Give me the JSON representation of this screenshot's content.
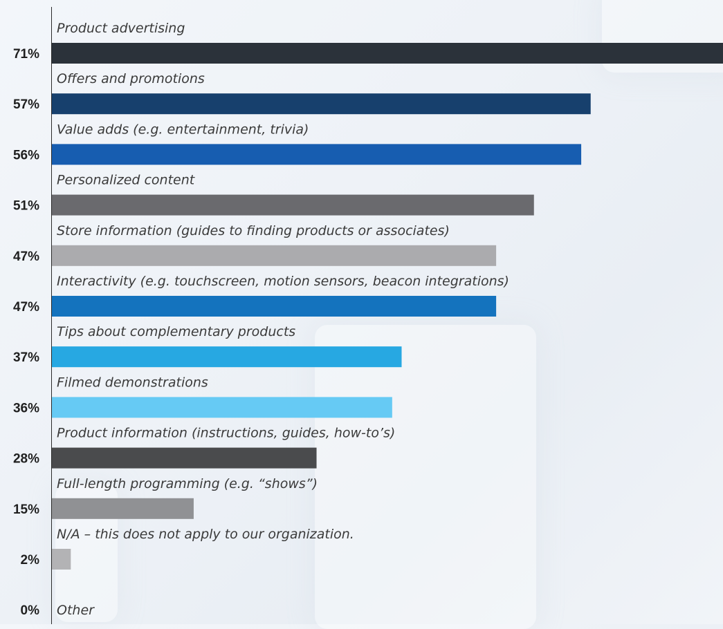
{
  "chart_data": {
    "type": "bar",
    "orientation": "horizontal",
    "categories": [
      "Product advertising",
      "Offers and promotions",
      "Value adds (e.g. entertainment, trivia)",
      "Personalized content",
      "Store information (guides to finding products or associates)",
      "Interactivity (e.g. touchscreen, motion sensors, beacon integrations)",
      "Tips about complementary products",
      "Filmed demonstrations",
      "Product information (instructions, guides, how-to’s)",
      "Full-length programming (e.g. “shows”)",
      "N/A – this does not apply to our organization.",
      "Other"
    ],
    "values": [
      71,
      57,
      56,
      51,
      47,
      47,
      37,
      36,
      28,
      15,
      2,
      0
    ],
    "value_labels": [
      "71%",
      "57%",
      "56%",
      "51%",
      "47%",
      "47%",
      "37%",
      "36%",
      "28%",
      "15%",
      "2%",
      "0%"
    ],
    "colors": [
      "#2b323a",
      "#17406d",
      "#175db0",
      "#6a6a6e",
      "#ababae",
      "#1473be",
      "#27a8e2",
      "#66caf4",
      "#4a4b4d",
      "#909194",
      "#b3b3b5",
      "#b3b3b5"
    ],
    "xlim": [
      0,
      71
    ],
    "grid": false,
    "legend": "none"
  }
}
